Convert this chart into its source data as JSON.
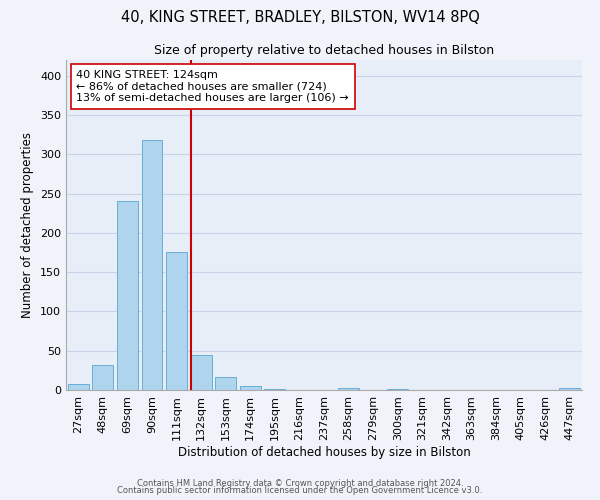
{
  "title": "40, KING STREET, BRADLEY, BILSTON, WV14 8PQ",
  "subtitle": "Size of property relative to detached houses in Bilston",
  "xlabel": "Distribution of detached houses by size in Bilston",
  "ylabel": "Number of detached properties",
  "bar_labels": [
    "27sqm",
    "48sqm",
    "69sqm",
    "90sqm",
    "111sqm",
    "132sqm",
    "153sqm",
    "174sqm",
    "195sqm",
    "216sqm",
    "237sqm",
    "258sqm",
    "279sqm",
    "300sqm",
    "321sqm",
    "342sqm",
    "363sqm",
    "384sqm",
    "405sqm",
    "426sqm",
    "447sqm"
  ],
  "bar_values": [
    8,
    32,
    240,
    318,
    176,
    45,
    17,
    5,
    1,
    0,
    0,
    3,
    0,
    1,
    0,
    0,
    0,
    0,
    0,
    0,
    2
  ],
  "bar_color": "#aed4ee",
  "bar_edge_color": "#6aaed6",
  "vline_color": "#cc0000",
  "annotation_title": "40 KING STREET: 124sqm",
  "annotation_line1": "← 86% of detached houses are smaller (724)",
  "annotation_line2": "13% of semi-detached houses are larger (106) →",
  "footer1": "Contains HM Land Registry data © Crown copyright and database right 2024.",
  "footer2": "Contains public sector information licensed under the Open Government Licence v3.0.",
  "ylim": [
    0,
    420
  ],
  "background_color": "#f0f4fa",
  "plot_bg_color": "#e8eef8",
  "grid_color": "#c8d4e8"
}
